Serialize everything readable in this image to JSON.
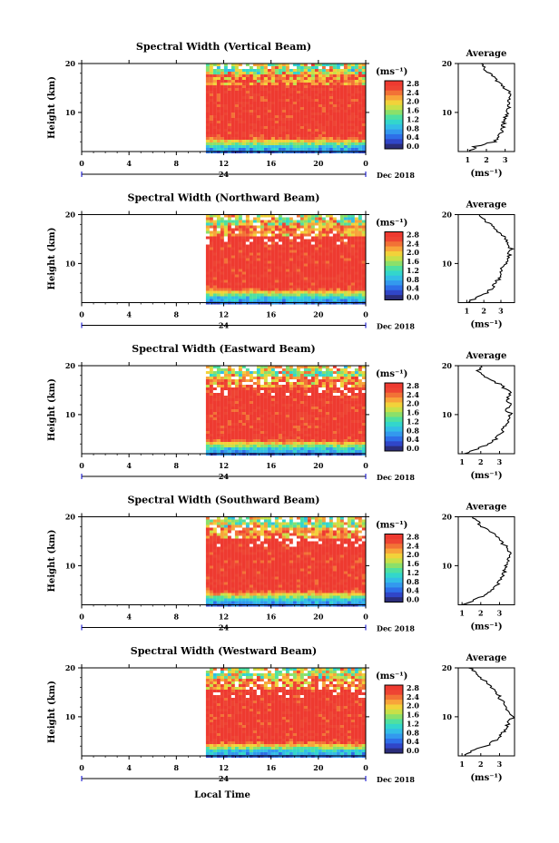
{
  "figure": {
    "xlabel": "Local Time",
    "date_label": "Dec 2018",
    "day_label": "24",
    "x_ticks": [
      "0",
      "4",
      "8",
      "12",
      "16",
      "20",
      "0"
    ],
    "y_ticks": [
      "20",
      "10"
    ],
    "ylabel": "Height (km)",
    "unit_label": "(ms⁻¹)",
    "average_title": "Average",
    "colorbar_ticks": [
      "2.8",
      "2.4",
      "2.0",
      "1.6",
      "1.2",
      "0.8",
      "0.4",
      "0.0"
    ],
    "colormap": [
      "#2b2d7a",
      "#3046c8",
      "#2e6fe8",
      "#3399ee",
      "#33bde6",
      "#33d6cc",
      "#4fe0a0",
      "#8be06a",
      "#c8e048",
      "#f2d23a",
      "#f8a43a",
      "#f27236",
      "#ee4433",
      "#ee3a30"
    ]
  },
  "chart_data": [
    {
      "type": "heatmap",
      "title": "Spectral Width (Vertical Beam)",
      "xlabel": "Local Time",
      "ylabel": "Height (km)",
      "xlim": [
        0,
        24
      ],
      "ylim": [
        2,
        20
      ],
      "data_start_hour": 10.5,
      "colorbar": {
        "label": "(ms⁻¹)",
        "range": [
          0.0,
          2.8
        ]
      },
      "average_profile": {
        "title": "Average",
        "xlabel": "(ms⁻¹)",
        "xticks": [
          "1",
          "2",
          "3"
        ],
        "xlim": [
          0.5,
          3.5
        ],
        "height_km": [
          2,
          3,
          4,
          5,
          6,
          7,
          8,
          9,
          10,
          11,
          12,
          13,
          14,
          15,
          16,
          17,
          18,
          19,
          20
        ],
        "value": [
          1.1,
          1.4,
          2.4,
          2.7,
          2.8,
          2.9,
          2.9,
          3.0,
          3.1,
          3.2,
          3.2,
          3.3,
          3.2,
          3.0,
          2.7,
          2.5,
          2.2,
          1.9,
          1.7
        ]
      }
    },
    {
      "type": "heatmap",
      "title": "Spectral Width (Northward Beam)",
      "xlabel": "Local Time",
      "ylabel": "Height (km)",
      "xlim": [
        0,
        24
      ],
      "ylim": [
        2,
        20
      ],
      "data_start_hour": 10.5,
      "colorbar": {
        "label": "(ms⁻¹)",
        "range": [
          0.0,
          2.8
        ]
      },
      "average_profile": {
        "title": "Average",
        "xlabel": "(ms⁻¹)",
        "xticks": [
          "1",
          "2",
          "3"
        ],
        "xlim": [
          0.5,
          3.8
        ],
        "height_km": [
          2,
          3,
          4,
          5,
          6,
          7,
          8,
          9,
          10,
          11,
          12,
          13,
          14,
          15,
          16,
          17,
          18,
          19,
          20
        ],
        "value": [
          1.1,
          1.5,
          2.2,
          2.5,
          2.7,
          2.9,
          3.0,
          3.1,
          3.3,
          3.4,
          3.5,
          3.6,
          3.4,
          3.3,
          3.0,
          2.7,
          2.4,
          2.0,
          1.8
        ]
      }
    },
    {
      "type": "heatmap",
      "title": "Spectral Width (Eastward Beam)",
      "xlabel": "Local Time",
      "ylabel": "Height (km)",
      "xlim": [
        0,
        24
      ],
      "ylim": [
        2,
        20
      ],
      "data_start_hour": 10.5,
      "colorbar": {
        "label": "(ms⁻¹)",
        "range": [
          0.0,
          2.8
        ]
      },
      "average_profile": {
        "title": "Average",
        "xlabel": "(ms⁻¹)",
        "xticks": [
          "1",
          "2",
          "3"
        ],
        "xlim": [
          0.8,
          3.8
        ],
        "height_km": [
          2,
          3,
          4,
          5,
          6,
          7,
          8,
          9,
          10,
          11,
          12,
          13,
          14,
          15,
          16,
          17,
          18,
          19,
          20
        ],
        "value": [
          1.2,
          1.8,
          2.5,
          2.8,
          3.0,
          3.2,
          3.3,
          3.5,
          3.6,
          3.4,
          3.7,
          3.3,
          3.6,
          3.4,
          3.1,
          2.6,
          2.2,
          1.9,
          2.0
        ]
      }
    },
    {
      "type": "heatmap",
      "title": "Spectral Width (Southward Beam)",
      "xlabel": "Local Time",
      "ylabel": "Height (km)",
      "xlim": [
        0,
        24
      ],
      "ylim": [
        2,
        20
      ],
      "data_start_hour": 10.5,
      "colorbar": {
        "label": "(ms⁻¹)",
        "range": [
          0.0,
          2.8
        ]
      },
      "average_profile": {
        "title": "Average",
        "xlabel": "(ms⁻¹)",
        "xticks": [
          "1",
          "2",
          "3"
        ],
        "xlim": [
          0.8,
          3.8
        ],
        "height_km": [
          2,
          3,
          4,
          5,
          6,
          7,
          8,
          9,
          10,
          11,
          12,
          13,
          14,
          15,
          16,
          17,
          18,
          19,
          20
        ],
        "value": [
          1.1,
          1.6,
          2.3,
          2.6,
          2.9,
          3.0,
          3.2,
          3.3,
          3.4,
          3.5,
          3.6,
          3.5,
          3.3,
          3.1,
          2.8,
          2.5,
          2.1,
          1.8,
          1.6
        ]
      }
    },
    {
      "type": "heatmap",
      "title": "Spectral Width (Westward Beam)",
      "xlabel": "Local Time",
      "ylabel": "Height (km)",
      "xlim": [
        0,
        24
      ],
      "ylim": [
        2,
        20
      ],
      "data_start_hour": 10.5,
      "colorbar": {
        "label": "(ms⁻¹)",
        "range": [
          0.0,
          2.8
        ]
      },
      "average_profile": {
        "title": "Average",
        "xlabel": "(ms⁻¹)",
        "xticks": [
          "1",
          "2",
          "3"
        ],
        "xlim": [
          0.8,
          3.8
        ],
        "height_km": [
          2,
          3,
          4,
          5,
          6,
          7,
          8,
          9,
          10,
          11,
          12,
          13,
          14,
          15,
          16,
          17,
          18,
          19,
          20
        ],
        "value": [
          1.1,
          1.5,
          2.3,
          2.7,
          3.0,
          3.2,
          3.4,
          3.5,
          3.7,
          3.5,
          3.4,
          3.2,
          3.0,
          2.8,
          2.6,
          2.3,
          2.0,
          1.7,
          1.4
        ]
      }
    }
  ]
}
